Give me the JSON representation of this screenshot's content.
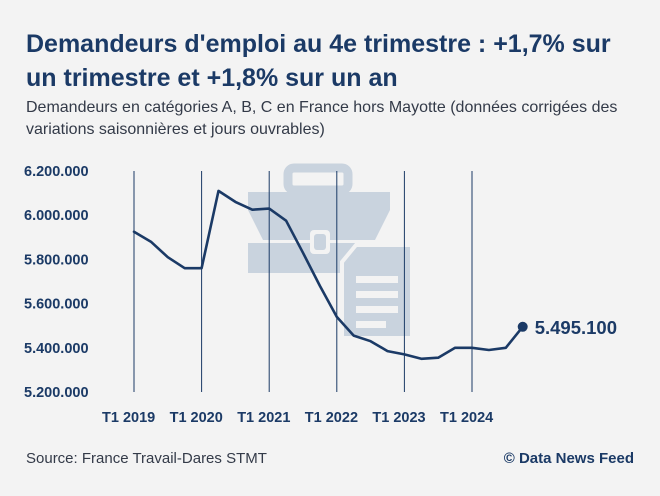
{
  "title": "Demandeurs d'emploi au 4e trimestre : +1,7% sur un trimestre et +1,8% sur un an",
  "subtitle": "Demandeurs en catégories A, B, C en France hors Mayotte (données corrigées des variations saisonnières et jours ouvrables)",
  "source": "Source: France Travail-Dares STMT",
  "copyright": "© Data News Feed",
  "colors": {
    "line": "#1b3a66",
    "watermark": "#c9d3de",
    "grid": "#1b3a66",
    "background": "#f3f3f3"
  },
  "chart_data": {
    "type": "line",
    "title": "Demandeurs d'emploi au 4e trimestre : +1,7% sur un trimestre et +1,8% sur un an",
    "xlabel": "",
    "ylabel": "",
    "ylim": [
      5200000,
      6200000
    ],
    "yticks": [
      6200000,
      6000000,
      5800000,
      5600000,
      5400000,
      5200000
    ],
    "ytick_labels": [
      "6.200.000",
      "6.000.000",
      "5.800.000",
      "5.600.000",
      "5.400.000",
      "5.200.000"
    ],
    "xtick_labels": [
      "T1 2019",
      "T1 2020",
      "T1 2021",
      "T1 2022",
      "T1 2023",
      "T1 2024"
    ],
    "vertical_gridlines_at_quarter": [
      0,
      4,
      8,
      12,
      16,
      20
    ],
    "grid": "vertical",
    "x": [
      "T1 2019",
      "T2 2019",
      "T3 2019",
      "T4 2019",
      "T1 2020",
      "T2 2020",
      "T3 2020",
      "T4 2020",
      "T1 2021",
      "T2 2021",
      "T3 2021",
      "T4 2021",
      "T1 2022",
      "T2 2022",
      "T3 2022",
      "T4 2022",
      "T1 2023",
      "T2 2023",
      "T3 2023",
      "T4 2023",
      "T1 2024",
      "T2 2024",
      "T3 2024",
      "T4 2024"
    ],
    "series": [
      {
        "values": [
          5925000,
          5880000,
          5810000,
          5760000,
          5760000,
          6110000,
          6060000,
          6025000,
          6030000,
          5975000,
          5830000,
          5680000,
          5540000,
          5455000,
          5430000,
          5385000,
          5370000,
          5350000,
          5355000,
          5400000,
          5400000,
          5390000,
          5400000,
          5495100
        ]
      }
    ],
    "end_label": "5.495.100"
  }
}
